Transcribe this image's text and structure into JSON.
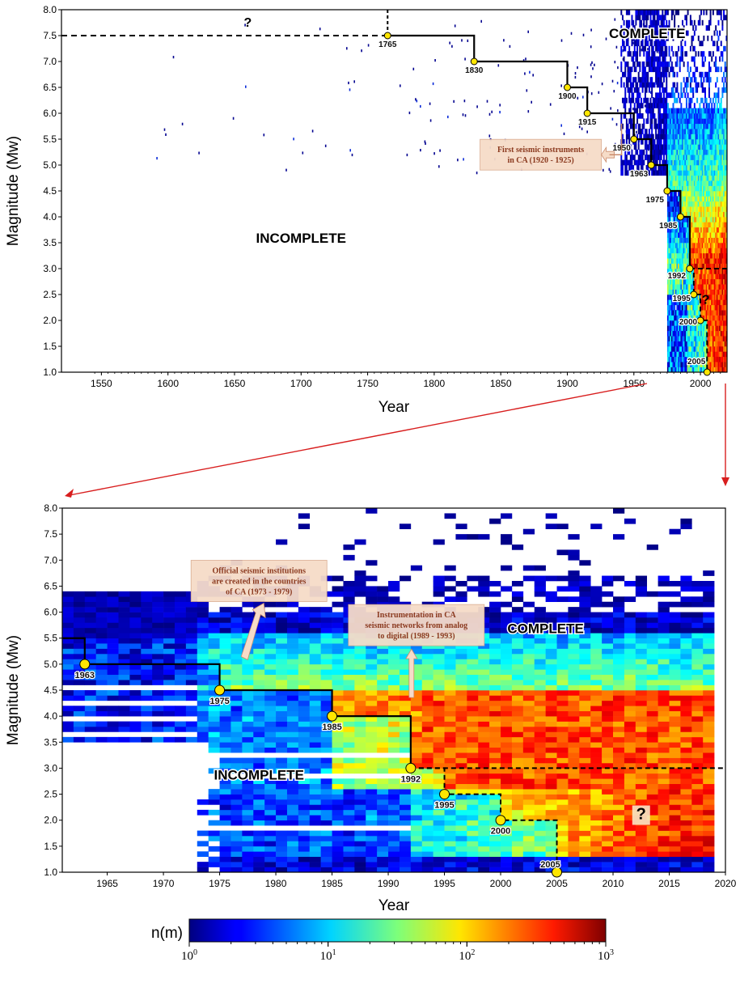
{
  "chart_data": [
    {
      "type": "heatmap",
      "title": "",
      "xlabel": "Year",
      "ylabel": "Magnitude (Mw)",
      "xlim": [
        1520,
        2020
      ],
      "ylim": [
        1.0,
        8.0
      ],
      "xticks": [
        1550,
        1600,
        1650,
        1700,
        1750,
        1800,
        1850,
        1900,
        1950,
        2000
      ],
      "yticks": [
        1.0,
        1.5,
        2.0,
        2.5,
        3.0,
        3.5,
        4.0,
        4.5,
        5.0,
        5.5,
        6.0,
        6.5,
        7.0,
        7.5,
        8.0
      ],
      "completeness_steps": [
        {
          "year": 1765,
          "mc": 7.5,
          "label": "1765"
        },
        {
          "year": 1830,
          "mc": 7.0,
          "label": "1830"
        },
        {
          "year": 1900,
          "mc": 6.5,
          "label": "1900"
        },
        {
          "year": 1915,
          "mc": 6.0,
          "label": "1915"
        },
        {
          "year": 1950,
          "mc": 5.5,
          "label": "1950"
        },
        {
          "year": 1963,
          "mc": 5.0,
          "label": "1963"
        },
        {
          "year": 1975,
          "mc": 4.5,
          "label": "1975"
        },
        {
          "year": 1985,
          "mc": 4.0,
          "label": "1985"
        },
        {
          "year": 1992,
          "mc": 3.0,
          "label": "1992"
        },
        {
          "year": 1995,
          "mc": 2.5,
          "label": "1995"
        },
        {
          "year": 2000,
          "mc": 2.0,
          "label": "2000"
        },
        {
          "year": 2005,
          "mc": 1.0,
          "label": "2005"
        }
      ],
      "solid_until_year": 1992,
      "dashed_upper_level": 7.5,
      "dashed_lower_level": 3.0,
      "annotations": [
        {
          "text": "INCOMPLETE",
          "kind": "zone",
          "x": 1700,
          "y": 3.5
        },
        {
          "text": "COMPLETE",
          "kind": "zone",
          "x": 1960,
          "y": 7.45
        },
        {
          "text": "?",
          "kind": "question",
          "x": 1660,
          "y": 7.7
        },
        {
          "text": "?",
          "kind": "question",
          "x": 2004,
          "y": 2.35
        },
        {
          "text": "First seismic instruments\nin CA (1920 - 1925)",
          "kind": "note",
          "x": 1880,
          "y": 5.2
        }
      ]
    },
    {
      "type": "heatmap",
      "title": "",
      "xlabel": "Year",
      "ylabel": "Magnitude (Mw)",
      "xlim": [
        1961,
        2020
      ],
      "ylim": [
        1.0,
        8.0
      ],
      "xticks": [
        1965,
        1970,
        1975,
        1980,
        1985,
        1990,
        1995,
        2000,
        2005,
        2010,
        2015,
        2020
      ],
      "yticks": [
        1.0,
        1.5,
        2.0,
        2.5,
        3.0,
        3.5,
        4.0,
        4.5,
        5.0,
        5.5,
        6.0,
        6.5,
        7.0,
        7.5,
        8.0
      ],
      "completeness_steps": [
        {
          "year": 1963,
          "mc": 5.0,
          "label": "1963"
        },
        {
          "year": 1975,
          "mc": 4.5,
          "label": "1975"
        },
        {
          "year": 1985,
          "mc": 4.0,
          "label": "1985"
        },
        {
          "year": 1992,
          "mc": 3.0,
          "label": "1992"
        },
        {
          "year": 1995,
          "mc": 2.5,
          "label": "1995"
        },
        {
          "year": 2000,
          "mc": 2.0,
          "label": "2000"
        },
        {
          "year": 2005,
          "mc": 1.0,
          "label": "2005"
        }
      ],
      "solid_until_year": 1992,
      "dashed_lower_level": 3.0,
      "annotations": [
        {
          "text": "INCOMPLETE",
          "kind": "zone",
          "x": 1978.5,
          "y": 2.78
        },
        {
          "text": "COMPLETE",
          "kind": "zone",
          "x": 2004,
          "y": 5.6
        },
        {
          "text": "?",
          "kind": "question",
          "x": 2012.5,
          "y": 2.05
        },
        {
          "text": "Official seismic institutions\nare created in the countries\nof CA (1973 - 1979)",
          "kind": "note",
          "x": 1978.5,
          "y": 6.6
        },
        {
          "text": "Instrumentation in CA\nseismic networks from analog\nto digital (1989 - 1993)",
          "kind": "note",
          "x": 1992.5,
          "y": 5.75
        }
      ]
    }
  ],
  "colorbar": {
    "label": "n(m)",
    "scale": "log",
    "range": [
      1,
      1000
    ],
    "ticks": [
      "10^0",
      "10^1",
      "10^2",
      "10^3"
    ]
  },
  "colors": {
    "step_line": "#000000",
    "marker_fill": "#ffe600",
    "zoom_arrow": "#d81e1e",
    "note_fill": "#f6dcc8",
    "note_text": "#8b3a1f"
  }
}
